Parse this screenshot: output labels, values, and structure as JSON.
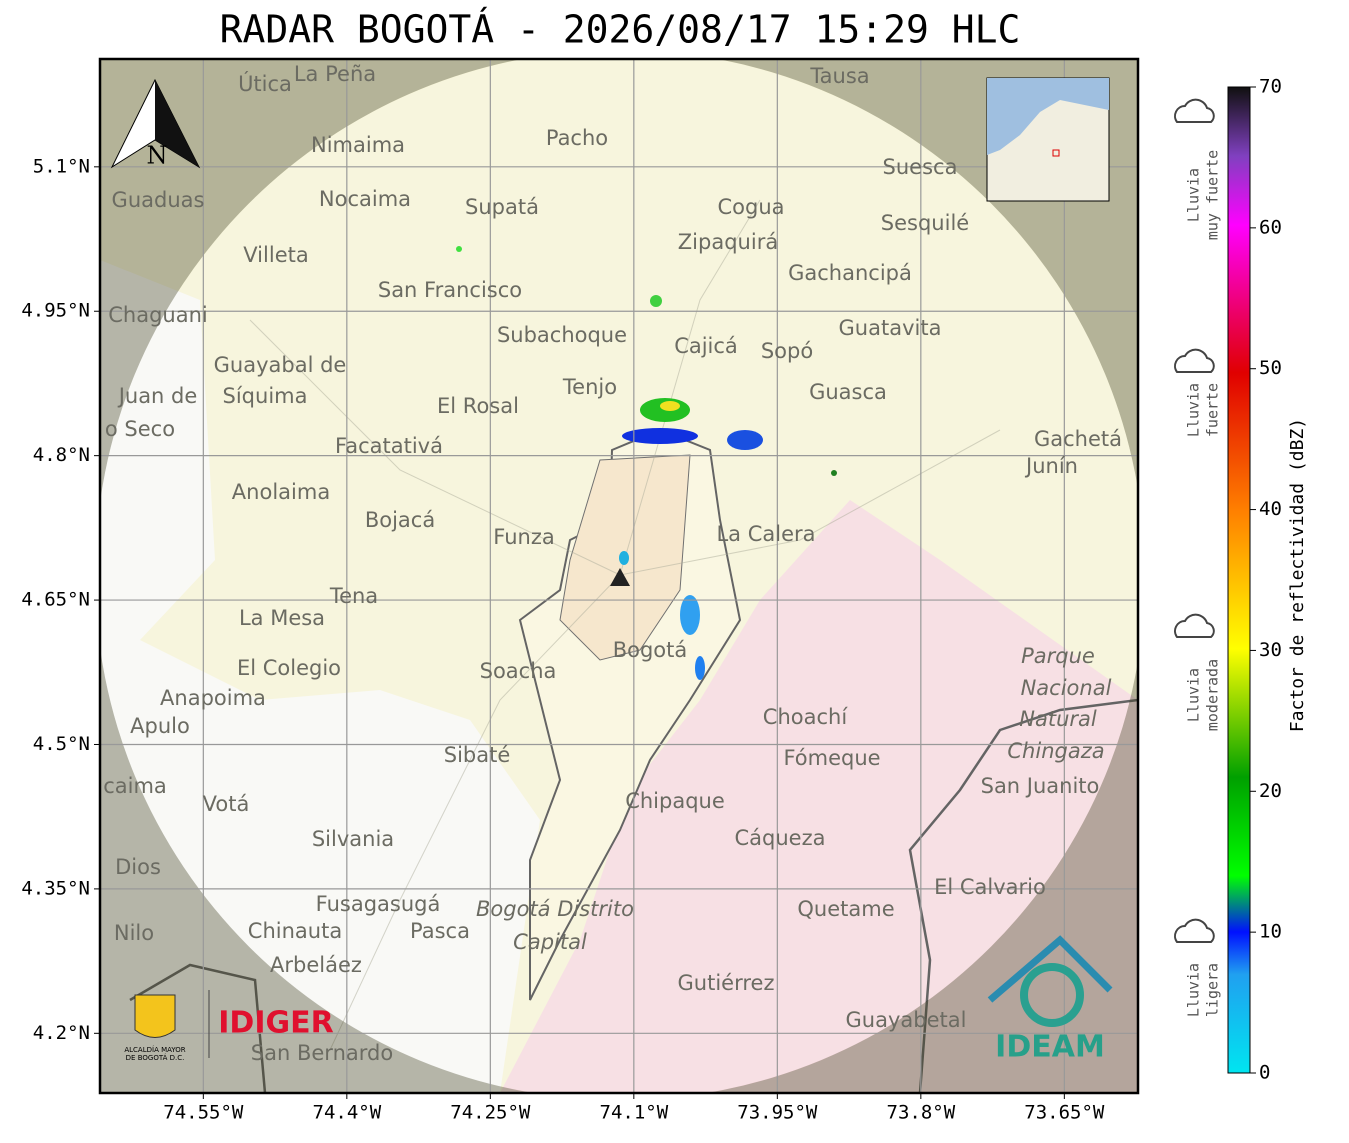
{
  "header": {
    "title": "RADAR BOGOTÁ - 2026/08/17 15:29 HLC"
  },
  "map": {
    "latlim": [
      4.138,
      5.212
    ],
    "lonlim": [
      -74.658,
      -73.573
    ],
    "lat_ticks": [
      {
        "value": 5.1,
        "label": "5.1°N"
      },
      {
        "value": 4.95,
        "label": "4.95°N"
      },
      {
        "value": 4.8,
        "label": "4.8°N"
      },
      {
        "value": 4.65,
        "label": "4.65°N"
      },
      {
        "value": 4.5,
        "label": "4.5°N"
      },
      {
        "value": 4.35,
        "label": "4.35°N"
      },
      {
        "value": 4.2,
        "label": "4.2°N"
      }
    ],
    "lon_ticks": [
      {
        "value": -74.55,
        "label": "74.55°W"
      },
      {
        "value": -74.4,
        "label": "74.4°W"
      },
      {
        "value": -74.25,
        "label": "74.25°W"
      },
      {
        "value": -74.1,
        "label": "74.1°W"
      },
      {
        "value": -73.95,
        "label": "73.95°W"
      },
      {
        "value": -73.8,
        "label": "73.8°W"
      },
      {
        "value": -73.65,
        "label": "73.65°W"
      }
    ],
    "north": "N",
    "places": [
      "Útica",
      "La Peña",
      "Tausa",
      "Pacho",
      "Nimaima",
      "Suesca",
      "Guaduas",
      "Nocaima",
      "Supatá",
      "Cogua",
      "Sesquilé",
      "Zipaquirá",
      "Villeta",
      "Gachancipá",
      "San Francisco",
      "Chaguani",
      "Guatavita",
      "Subachoque",
      "Cajicá",
      "Sopó",
      "Guayabal de",
      "Síquima",
      "Juan de",
      "Tenjo",
      "Guasca",
      "El Rosal",
      "o Seco",
      "Facatativá",
      "Gachetá",
      "Junín",
      "Anolaima",
      "Bojacá",
      "Funza",
      "La Calera",
      "Tena",
      "La Mesa",
      "Parque",
      "El Colegio",
      "Soacha",
      "Nacional",
      "Anapoima",
      "Apulo",
      "Choachí",
      "Natural",
      "Chingaza",
      "Sibaté",
      "Fómeque",
      "San Juanito",
      "caima",
      "Votá",
      "Chipaque",
      "Silvania",
      "Cáqueza",
      "Dios",
      "El Calvario",
      "Fusagasugá",
      "Bogotá Distrito",
      "Quetame",
      "Nilo",
      "Chinauta",
      "Pasca",
      "Capital",
      "Arbeláez",
      "Gutiérrez",
      "Guayabetal",
      "San Bernardo",
      "Bogotá"
    ]
  },
  "colorbar": {
    "label": "Factor de reflectividad (dBZ)",
    "lim": [
      0,
      70
    ],
    "ticks": [
      0,
      10,
      20,
      30,
      40,
      50,
      60,
      70
    ]
  },
  "legend": [
    {
      "line1": "Lluvia",
      "line2": "muy fuerte"
    },
    {
      "line1": "Lluvia",
      "line2": "fuerte"
    },
    {
      "line1": "Lluvia",
      "line2": "moderada"
    },
    {
      "line1": "Lluvia",
      "line2": "ligera"
    }
  ],
  "logos": {
    "alcaldia1": "ALCALDÍA MAYOR",
    "alcaldia2": "DE BOGOTÁ D.C.",
    "idiger": "IDIGER",
    "ideam": "IDEAM"
  }
}
